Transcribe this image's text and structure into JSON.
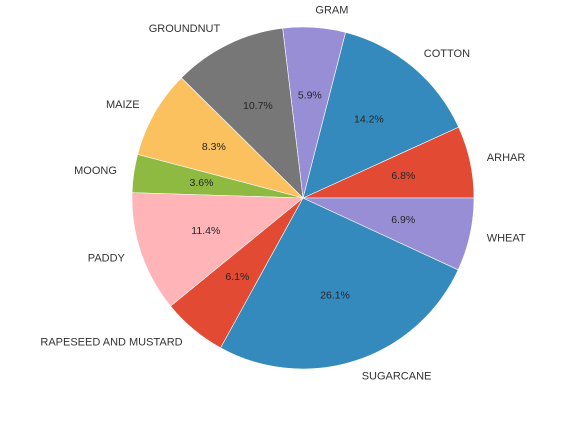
{
  "chart_data": {
    "type": "pie",
    "title": "",
    "categories": [
      "ARHAR",
      "COTTON",
      "GRAM",
      "GROUNDNUT",
      "MAIZE",
      "MOONG",
      "PADDY",
      "RAPESEED AND MUSTARD",
      "SUGARCANE",
      "WHEAT"
    ],
    "values": [
      6.8,
      14.2,
      5.9,
      10.7,
      8.3,
      3.6,
      11.4,
      6.1,
      26.1,
      6.9
    ],
    "value_labels": [
      "6.8%",
      "14.2%",
      "5.9%",
      "10.7%",
      "8.3%",
      "3.6%",
      "11.4%",
      "6.1%",
      "26.1%",
      "6.9%"
    ],
    "colors": [
      "#E24A33",
      "#348ABD",
      "#988ED5",
      "#777777",
      "#FBC15E",
      "#8EBA42",
      "#FFB5B8",
      "#E24A33",
      "#348ABD",
      "#988ED5"
    ],
    "start_angle_deg": 0,
    "direction": "counterclockwise",
    "legend": "none"
  }
}
